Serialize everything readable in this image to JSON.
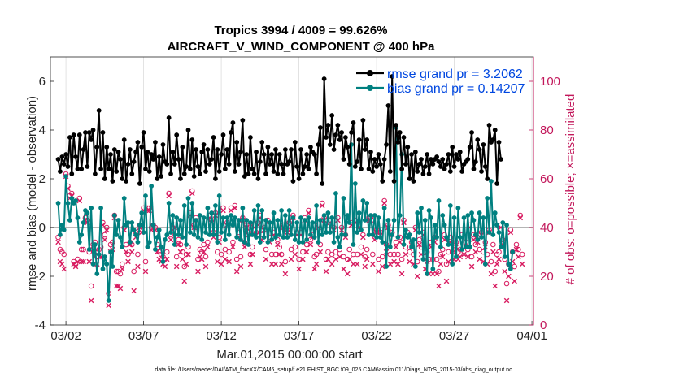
{
  "chart_data": {
    "type": "line",
    "title": "Tropics 3994 / 4009 = 99.626%",
    "subtitle": "AIRCRAFT_V_WIND_COMPONENT @ 400 hPa",
    "xlabel": "Mar.01,2015 00:00:00 start",
    "ylabel": "rmse and bias (model - observation)",
    "y2label": "# of obs: o=possible; ×=assimilated",
    "footer": "data file: /Users/raeder/DAI/ATM_forcXX/CAM6_setup/f.e21.FHIST_BGC.f09_025.CAM6assim.011/Diags_NTrS_2015-03/obs_diag_output.nc",
    "xlim": [
      0.5,
      31.6
    ],
    "ylim": [
      -4,
      7
    ],
    "y2lim": [
      0,
      110
    ],
    "x_ticks": [
      1.5,
      6.5,
      11.5,
      16.5,
      21.5,
      26.5,
      31.5
    ],
    "x_tick_labels": [
      "03/02",
      "03/07",
      "03/12",
      "03/17",
      "03/22",
      "03/27",
      "04/01"
    ],
    "y_ticks": [
      -4,
      -2,
      0,
      2,
      4,
      6
    ],
    "y_tick_labels": [
      "-4",
      "-2",
      "0",
      "2",
      "4",
      "6"
    ],
    "y2_ticks": [
      0,
      20,
      40,
      60,
      80,
      100
    ],
    "y2_tick_labels": [
      "0",
      "20",
      "40",
      "60",
      "80",
      "100"
    ],
    "legend_position": "top-right",
    "colors": {
      "rmse": "#000000",
      "bias": "#008080",
      "obs": "#d81b60",
      "legend_text": "#0047e0",
      "y2axis": "#c2185b",
      "zero_line": "#b4b4b4"
    },
    "series": [
      {
        "name": "rmse grand pr = 3.2062",
        "legend_label": "rmse grand pr = 3.2062",
        "values": [
          2.8,
          2.3,
          2.9,
          2.6,
          3.0,
          2.5,
          3.7,
          2.2,
          3.8,
          2.9,
          2.4,
          3.8,
          2.4,
          3.2,
          3.9,
          2.5,
          3.9,
          3.6,
          4.0,
          2.2,
          3.3,
          4.8,
          2.4,
          3.9,
          2.0,
          3.3,
          2.4,
          3.0,
          1.9,
          3.2,
          2.3,
          3.1,
          2.8,
          2.0,
          3.6,
          1.9,
          2.6,
          3.2,
          2.2,
          2.7,
          3.1,
          3.5,
          1.8,
          3.3,
          3.9,
          2.4,
          3.1,
          2.3,
          3.0,
          2.8,
          3.5,
          2.0,
          2.9,
          2.1,
          3.4,
          2.7,
          2.6,
          4.5,
          2.2,
          3.1,
          2.6,
          3.8,
          2.8,
          2.0,
          3.3,
          2.2,
          2.5,
          4.0,
          2.4,
          3.6,
          2.1,
          3.2,
          2.5,
          2.2,
          3.1,
          3.4,
          2.3,
          3.2,
          2.6,
          2.8,
          3.7,
          2.0,
          3.2,
          2.3,
          3.0,
          3.8,
          2.4,
          3.2,
          2.6,
          3.9,
          4.3,
          2.3,
          3.5,
          2.6,
          3.1,
          4.4,
          2.1,
          3.0,
          2.2,
          3.7,
          2.4,
          2.2,
          3.1,
          2.0,
          2.7,
          3.5,
          3.0,
          2.2,
          3.3,
          2.6,
          3.0,
          2.3,
          3.2,
          2.2,
          3.0,
          2.6,
          2.2,
          3.2,
          2.6,
          2.7,
          3.2,
          1.9,
          3.5,
          2.5,
          2.0,
          3.2,
          2.2,
          2.5,
          3.0,
          2.4,
          3.3,
          3.1,
          3.0,
          2.2,
          3.4,
          4.1,
          1.8,
          6.1,
          3.7,
          4.2,
          3.4,
          4.6,
          3.2,
          3.8,
          4.2,
          3.6,
          3.9,
          2.8,
          3.7,
          3.3,
          2.6,
          3.9,
          4.3,
          2.5,
          2.7,
          3.6,
          2.4,
          4.4,
          3.2,
          3.6,
          2.4,
          3.1,
          2.3,
          2.8,
          2.5,
          3.0,
          2.6,
          1.9,
          2.8,
          3.4,
          5.0,
          2.3,
          6.2,
          1.9,
          4.2,
          3.5,
          3.9,
          2.4,
          3.7,
          2.6,
          3.3,
          2.0,
          3.0,
          1.9,
          3.1,
          2.3,
          2.6,
          2.8,
          2.2,
          2.5,
          3.0,
          2.2,
          2.8,
          2.6,
          2.8,
          2.9,
          2.7,
          2.5,
          2.8,
          2.4,
          2.6,
          3.0,
          2.3,
          3.3,
          2.5,
          3.0,
          2.8,
          3.1,
          2.3,
          2.6,
          2.7,
          2.8,
          3.3,
          3.9,
          2.4,
          2.7,
          3.6,
          3.2,
          2.3,
          3.4,
          2.5,
          2.0,
          4.2,
          3.5,
          3.6,
          4.0,
          1.8,
          3.5,
          2.8
        ]
      },
      {
        "name": "bias grand pr = 0.14207",
        "legend_label": "bias grand pr = 0.14207",
        "values": [
          1.0,
          -0.3,
          0.1,
          -0.1,
          2.1,
          1.0,
          0.3,
          1.2,
          1.0,
          1.1,
          0.4,
          -0.6,
          -0.3,
          0.2,
          0.7,
          0.6,
          -0.9,
          0.8,
          -1.5,
          -0.7,
          -1.9,
          -1.1,
          0.8,
          -1.7,
          -1.2,
          -1.5,
          -3.0,
          -1.0,
          -1.6,
          0.5,
          -0.3,
          0.3,
          -0.4,
          -0.8,
          1.2,
          0.1,
          0.2,
          -0.6,
          0.2,
          -0.1,
          -0.3,
          -0.6,
          0.1,
          0.6,
          -0.2,
          1.3,
          -0.8,
          -0.6,
          1.7,
          0.1,
          -0.9,
          -0.4,
          -0.1,
          -0.8,
          -1.4,
          -0.5,
          -0.3,
          1.0,
          -0.2,
          0.5,
          -0.7,
          0.4,
          -0.3,
          0.3,
          -0.4,
          0.9,
          -0.7,
          1.2,
          -0.2,
          1.0,
          -0.3,
          0.3,
          -0.4,
          0.5,
          -0.5,
          0.4,
          -0.2,
          0.8,
          -0.3,
          0.6,
          -0.3,
          0.9,
          -0.6,
          1.3,
          -0.2,
          0.4,
          -0.5,
          0.4,
          -0.3,
          0.5,
          0.1,
          0.4,
          -0.4,
          0.3,
          -0.5,
          0.8,
          -0.6,
          0.3,
          -0.7,
          0.2,
          -0.3,
          0.7,
          -0.4,
          0.9,
          -0.6,
          0.7,
          -0.4,
          0.3,
          -0.6,
          0.2,
          -0.5,
          0.6,
          -0.4,
          0.3,
          -0.3,
          0.7,
          -0.4,
          0.5,
          -0.4,
          0.7,
          -0.3,
          0.4,
          -0.5,
          0.2,
          -0.6,
          0.4,
          -0.6,
          0.3,
          -0.5,
          0.4,
          -0.3,
          0.2,
          -0.4,
          0.9,
          -0.6,
          0.3,
          -0.3,
          0.5,
          -0.2,
          0.6,
          -0.2,
          0.4,
          -0.6,
          1.4,
          -0.4,
          -0.8,
          -0.3,
          1.2,
          -0.3,
          0.5,
          0.2,
          3.4,
          -0.7,
          1.8,
          -0.2,
          0.6,
          -0.1,
          1.1,
          0.3,
          1.0,
          -0.3,
          0.5,
          -0.3,
          0.5,
          -0.4,
          0.4,
          -0.4,
          -0.6,
          0.8,
          -1.6,
          0.3,
          -0.8,
          -0.3,
          0.3,
          4.1,
          -0.4,
          0.5,
          3.0,
          -0.7,
          -0.1,
          -0.4,
          -0.3,
          -0.8,
          -0.5,
          -1.6,
          0.6,
          -0.2,
          0.8,
          -1.3,
          0.3,
          -1.9,
          0.7,
          0.4,
          -1.7,
          0.1,
          -0.4,
          1.1,
          -0.8,
          0.5,
          0.1,
          -0.4,
          -0.7,
          0.9,
          -1.5,
          0.4,
          -1.2,
          0.8,
          -0.4,
          -0.9,
          0.4,
          -0.8,
          0.5,
          -0.8,
          0.6,
          0.3,
          -0.3,
          -0.5,
          0.6,
          -0.4,
          0.4,
          -1.5,
          1.2,
          -0.2,
          1.9,
          -0.3,
          0.6,
          0.1,
          -0.2,
          -0.8,
          0.2,
          -1.2,
          0.1,
          -1.5,
          -1.7,
          -1.0
        ]
      }
    ],
    "obs_possible": [
      36,
      31,
      30,
      29,
      62,
      57,
      53,
      54,
      26,
      25,
      27,
      52,
      31,
      31,
      44,
      43,
      30,
      16,
      33,
      34,
      28,
      31,
      32,
      42,
      37,
      40,
      13,
      33,
      34,
      45,
      22,
      22,
      21,
      25,
      40,
      33,
      29,
      34,
      33,
      22,
      38,
      29,
      41,
      39,
      48,
      26,
      48,
      48,
      40,
      41,
      40,
      33,
      30,
      29,
      28,
      27,
      30,
      54,
      37,
      40,
      41,
      28,
      35,
      33,
      30,
      24,
      29,
      32,
      46,
      55,
      41,
      44,
      27,
      31,
      30,
      33,
      28,
      34,
      45,
      43,
      38,
      46,
      30,
      36,
      29,
      48,
      31,
      42,
      30,
      48,
      34,
      49,
      27,
      38,
      28,
      44,
      34,
      41,
      38,
      29,
      32,
      41,
      38,
      42,
      45,
      37,
      40,
      31,
      43,
      36,
      29,
      38,
      29,
      35,
      32,
      29,
      41,
      26,
      39,
      42,
      31,
      45,
      32,
      38,
      27,
      38,
      30,
      44,
      33,
      47,
      35,
      37,
      28,
      29,
      41,
      33,
      50,
      44,
      27,
      30,
      43,
      29,
      40,
      30,
      44,
      31,
      40,
      28,
      37,
      27,
      31,
      42,
      29,
      43,
      29,
      41,
      32,
      37,
      28,
      31,
      44,
      44,
      29,
      37,
      39,
      27,
      38,
      28,
      51,
      33,
      41,
      29,
      38,
      29,
      34,
      29,
      36,
      27,
      43,
      32,
      38,
      30,
      34,
      29,
      40,
      26,
      35,
      32,
      38,
      28,
      30,
      27,
      34,
      27,
      36,
      27,
      22,
      29,
      31,
      37,
      25,
      30,
      36,
      30,
      31,
      34,
      30,
      31,
      37,
      32,
      34,
      31,
      41,
      28,
      37,
      33,
      36,
      31,
      38,
      30,
      34,
      29,
      39,
      26,
      33,
      22,
      29,
      30,
      41,
      35,
      27,
      17,
      25,
      39,
      30,
      24,
      33,
      31,
      45,
      29
    ],
    "obs_assimilated": [
      34,
      26,
      25,
      23,
      61,
      56,
      52,
      53,
      25,
      24,
      26,
      51,
      26,
      26,
      43,
      42,
      26,
      10,
      31,
      30,
      25,
      28,
      28,
      41,
      35,
      39,
      8,
      30,
      31,
      44,
      16,
      16,
      15,
      23,
      39,
      30,
      26,
      33,
      30,
      14,
      36,
      24,
      40,
      38,
      47,
      22,
      47,
      47,
      39,
      40,
      39,
      30,
      27,
      26,
      25,
      24,
      27,
      53,
      35,
      39,
      40,
      24,
      33,
      30,
      27,
      18,
      25,
      29,
      45,
      54,
      40,
      43,
      22,
      28,
      27,
      30,
      24,
      32,
      44,
      42,
      36,
      45,
      26,
      34,
      25,
      47,
      27,
      41,
      26,
      47,
      32,
      48,
      22,
      36,
      24,
      43,
      32,
      40,
      37,
      25,
      29,
      40,
      37,
      41,
      44,
      35,
      39,
      27,
      42,
      34,
      25,
      37,
      25,
      33,
      29,
      25,
      40,
      21,
      38,
      41,
      27,
      44,
      29,
      37,
      23,
      37,
      27,
      43,
      30,
      46,
      33,
      36,
      23,
      25,
      40,
      30,
      49,
      43,
      22,
      27,
      42,
      25,
      39,
      27,
      43,
      28,
      39,
      23,
      36,
      21,
      27,
      41,
      25,
      42,
      25,
      40,
      29,
      36,
      24,
      27,
      43,
      43,
      25,
      35,
      38,
      22,
      37,
      24,
      50,
      30,
      40,
      25,
      37,
      26,
      32,
      25,
      34,
      21,
      42,
      29,
      37,
      26,
      32,
      25,
      39,
      20,
      33,
      29,
      37,
      23,
      26,
      21,
      32,
      21,
      34,
      21,
      16,
      25,
      28,
      35,
      18,
      26,
      34,
      26,
      27,
      32,
      27,
      28,
      36,
      29,
      32,
      28,
      40,
      24,
      35,
      30,
      34,
      27,
      37,
      26,
      32,
      25,
      38,
      21,
      30,
      16,
      25,
      27,
      40,
      33,
      22,
      10,
      20,
      38,
      26,
      18,
      31,
      28,
      44,
      25
    ]
  }
}
